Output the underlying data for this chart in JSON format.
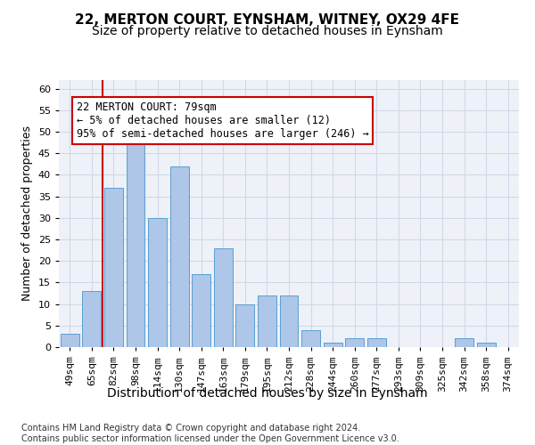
{
  "title1": "22, MERTON COURT, EYNSHAM, WITNEY, OX29 4FE",
  "title2": "Size of property relative to detached houses in Eynsham",
  "xlabel": "Distribution of detached houses by size in Eynsham",
  "ylabel": "Number of detached properties",
  "categories": [
    "49sqm",
    "65sqm",
    "82sqm",
    "98sqm",
    "114sqm",
    "130sqm",
    "147sqm",
    "163sqm",
    "179sqm",
    "195sqm",
    "212sqm",
    "228sqm",
    "244sqm",
    "260sqm",
    "277sqm",
    "293sqm",
    "309sqm",
    "325sqm",
    "342sqm",
    "358sqm",
    "374sqm"
  ],
  "values": [
    3,
    13,
    37,
    48,
    30,
    42,
    17,
    23,
    10,
    12,
    12,
    4,
    1,
    2,
    2,
    0,
    0,
    0,
    2,
    1,
    0
  ],
  "bar_color": "#aec6e8",
  "bar_edgecolor": "#5a9fd4",
  "vline_color": "#cc0000",
  "annotation_text": "22 MERTON COURT: 79sqm\n← 5% of detached houses are smaller (12)\n95% of semi-detached houses are larger (246) →",
  "annotation_box_color": "#ffffff",
  "annotation_box_edgecolor": "#cc0000",
  "ylim": [
    0,
    62
  ],
  "yticks": [
    0,
    5,
    10,
    15,
    20,
    25,
    30,
    35,
    40,
    45,
    50,
    55,
    60
  ],
  "grid_color": "#d0d8e8",
  "bg_color": "#eef2f8",
  "footer": "Contains HM Land Registry data © Crown copyright and database right 2024.\nContains public sector information licensed under the Open Government Licence v3.0.",
  "title_fontsize": 11,
  "subtitle_fontsize": 10,
  "xlabel_fontsize": 10,
  "ylabel_fontsize": 9,
  "tick_fontsize": 8,
  "annotation_fontsize": 8.5,
  "footer_fontsize": 7
}
